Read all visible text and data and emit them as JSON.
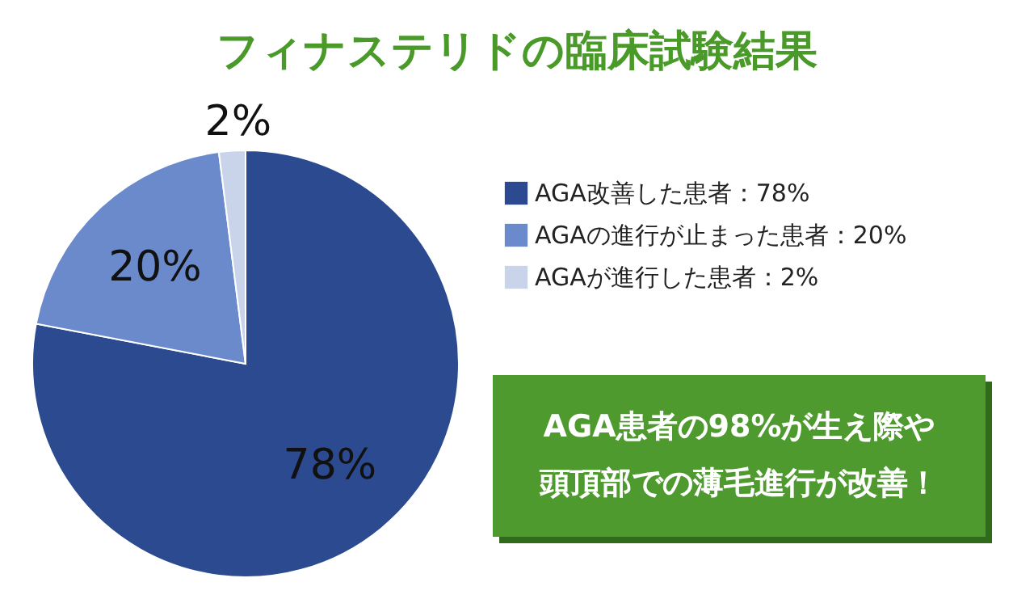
{
  "chart_data": {
    "type": "pie",
    "title": "フィナステリドの臨床試験結果",
    "categories": [
      "AGA改善した患者：78%",
      "AGAの進行が止まった患者：20%",
      "AGAが進行した患者：2%"
    ],
    "values": [
      78,
      20,
      2
    ],
    "colors": [
      "#2b4a8f",
      "#6a8acb",
      "#c9d3ea"
    ],
    "value_labels": [
      "78%",
      "20%",
      "2%"
    ],
    "legend": "right",
    "annotations": [
      "AGA患者の98%が生え際や",
      "頭頂部での薄毛進行が改善！"
    ]
  }
}
